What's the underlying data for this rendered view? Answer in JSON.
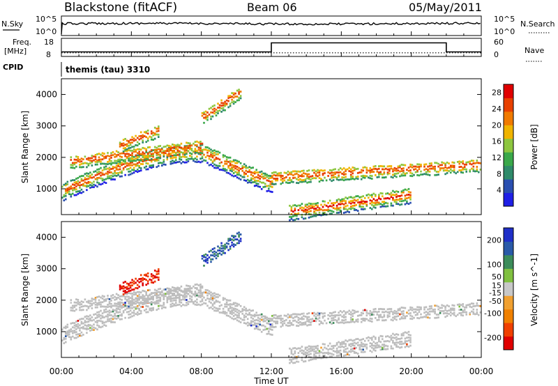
{
  "header": {
    "station": "Blackstone (fitACF)",
    "beam": "Beam 06",
    "date": "05/May/2011"
  },
  "strips": {
    "nsky_label": "N.Sky",
    "nsearch_label": "N.Search",
    "noise_ticks": [
      "10^5",
      "10^0"
    ],
    "freq_label": "Freq.",
    "freq_unit": "[MHz]",
    "freq_ticks": [
      "18",
      "8"
    ],
    "nave_label": "Nave",
    "nave_ticks": [
      "60",
      "0"
    ],
    "cpid_label": "CPID",
    "cpid_value": "themis (tau) 3310"
  },
  "colors": {
    "power_scale": [
      "#1f1fe6",
      "#2a4fb0",
      "#2f8a6a",
      "#3aa84a",
      "#8dc63f",
      "#f0b400",
      "#f07a00",
      "#e84000",
      "#e00000"
    ],
    "velocity_scale": [
      "#e00000",
      "#f04000",
      "#f08000",
      "#f0a030",
      "#c8c8c8",
      "#80c040",
      "#3c8c5a",
      "#2a5aa8",
      "#1f2fc8"
    ],
    "ground_scatter": "#bdbdbd"
  },
  "chart_data": {
    "type": "heatmap",
    "xlabel": "Time UT",
    "xticks": [
      "00:00",
      "04:00",
      "08:00",
      "12:00",
      "16:00",
      "20:00",
      "00:00"
    ],
    "xlim_hours": [
      0,
      24
    ],
    "panels": [
      {
        "name": "power",
        "ylabel": "Slant Range [km]",
        "yticks": [
          "1000",
          "2000",
          "3000",
          "4000"
        ],
        "ylim": [
          180,
          4500
        ],
        "colorbar_label": "Power [dB]",
        "colorbar_ticks": [
          "28",
          "24",
          "20",
          "16",
          "12",
          "8",
          "4"
        ],
        "colorbar_range": [
          0,
          30
        ]
      },
      {
        "name": "velocity",
        "ylabel": "Slant Range [km]",
        "yticks": [
          "1000",
          "2000",
          "3000",
          "4000"
        ],
        "ylim": [
          180,
          4500
        ],
        "colorbar_label": "Velocity [m s^-1]",
        "colorbar_ticks": [
          "200",
          "100",
          "50",
          "15",
          "-15",
          "-50",
          "-100",
          "-200"
        ],
        "colorbar_range": [
          -250,
          250
        ]
      }
    ],
    "features": [
      {
        "name": "main band",
        "start_hour": 0,
        "end_hour": 12,
        "range_start_km": 950,
        "range_peak_km": 2200,
        "peak_hour": 8,
        "range_end_km": 1200
      },
      {
        "name": "upper band",
        "start_hour": 0.5,
        "end_hour": 8,
        "range_start_km": 1900,
        "range_end_km": 2400
      },
      {
        "name": "high patch",
        "start_hour": 3.3,
        "end_hour": 5.5,
        "range_start_km": 2400,
        "range_end_km": 2900
      },
      {
        "name": "far patch",
        "start_hour": 8,
        "end_hour": 10.2,
        "range_start_km": 3300,
        "range_end_km": 4100
      },
      {
        "name": "afternoon low band",
        "start_hour": 13,
        "end_hour": 20,
        "range_start_km": 300,
        "range_end_km": 850
      },
      {
        "name": "afternoon upper band",
        "start_hour": 12,
        "end_hour": 24,
        "range_start_km": 1400,
        "range_end_km": 1800
      }
    ],
    "freq_step": {
      "low_mhz": 10.5,
      "high_mhz": 15.5,
      "switch_up_hour": 12,
      "switch_down_hour": 22
    },
    "nave_level": 12
  }
}
